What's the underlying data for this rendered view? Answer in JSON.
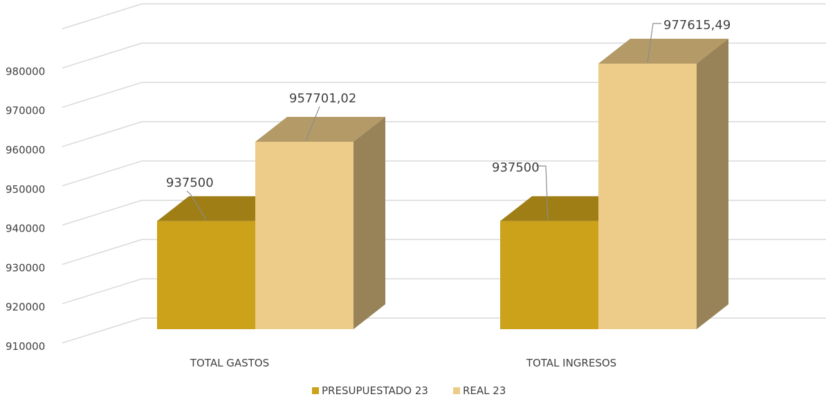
{
  "chart_data": {
    "type": "bar",
    "categories": [
      "TOTAL GASTOS",
      "TOTAL INGRESOS"
    ],
    "series": [
      {
        "name": "PRESUPUESTADO 23",
        "values": [
          937500,
          937500
        ],
        "labels": [
          "937500",
          "937500"
        ],
        "color": "#CCA21B"
      },
      {
        "name": "REAL 23",
        "values": [
          957701.02,
          977615.49
        ],
        "labels": [
          "957701,02",
          "977615,49"
        ],
        "color": "#EDCB88"
      }
    ],
    "yticks": [
      "910000",
      "920000",
      "930000",
      "940000",
      "950000",
      "960000",
      "970000",
      "980000"
    ],
    "ylim": [
      910000,
      980000
    ],
    "grid": true,
    "legend_position": "bottom",
    "style": "3d-column"
  }
}
